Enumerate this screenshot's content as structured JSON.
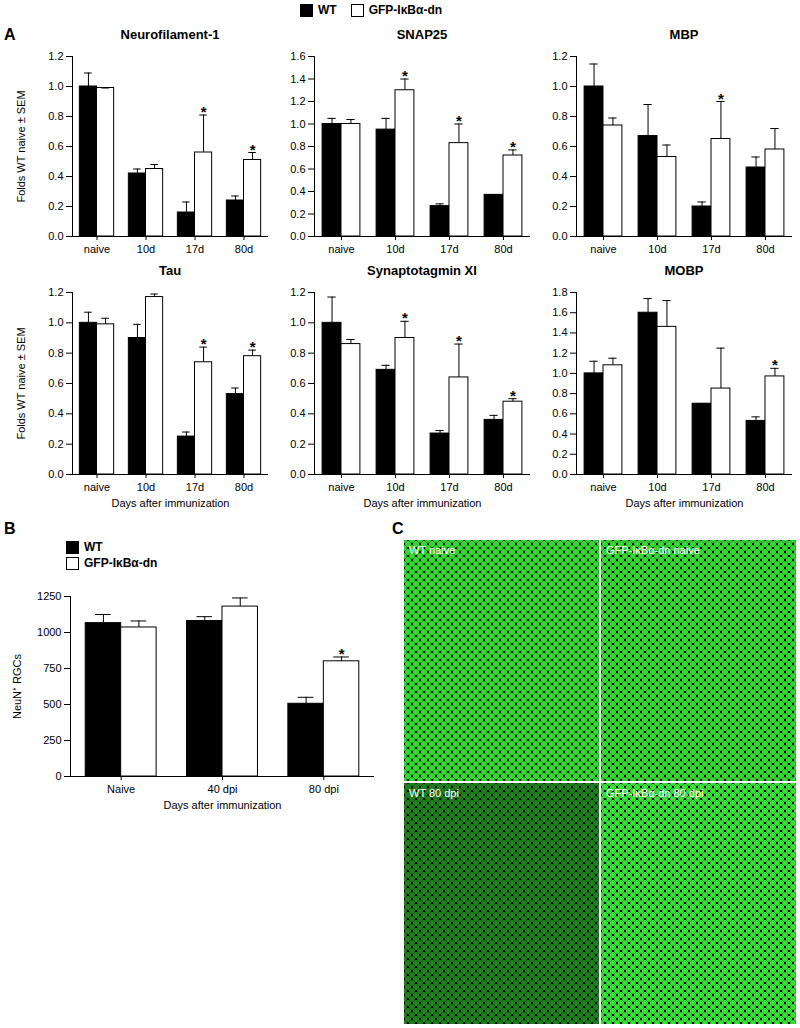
{
  "figure": {
    "panel_labels": [
      "A",
      "B",
      "C"
    ],
    "images": [
      "WT naive",
      "GFP-IκBα-dn naive",
      "WT 80 dpi",
      "GFP-IκBα-dn 80 dpi"
    ]
  },
  "chart_data": [
    {
      "type": "bar",
      "title": "Neurofilament-1",
      "legend": "top",
      "categories": [
        "naive",
        "10d",
        "17d",
        "80d"
      ],
      "ylabel": "Folds WT naive ± SEM",
      "ylim": [
        0,
        1.2
      ],
      "yticks": [
        {
          "value": 0,
          "label": "0.0"
        },
        0.2,
        0.4,
        0.6,
        0.8,
        {
          "value": 1,
          "label": "1.0"
        },
        1.2
      ],
      "series": [
        {
          "name": "WT",
          "color": "#000000",
          "values": [
            1.0,
            0.42,
            0.16,
            0.24
          ],
          "errors": [
            0.09,
            0.03,
            0.07,
            0.03
          ]
        },
        {
          "name": "GFP-IκBα-dn",
          "color": "#ffffff",
          "values": [
            0.99,
            0.45,
            0.56,
            0.51
          ],
          "errors": [
            0.0,
            0.03,
            0.25,
            0.05
          ],
          "annotations": [
            null,
            null,
            "*",
            "*"
          ]
        }
      ]
    },
    {
      "type": "bar",
      "title": "SNAP25",
      "categories": [
        "naive",
        "10d",
        "17d",
        "80d"
      ],
      "ylim": [
        0,
        1.6
      ],
      "yticks": [
        {
          "value": 0,
          "label": "0.0"
        },
        0.2,
        0.4,
        0.6,
        0.8,
        {
          "value": 1,
          "label": "1.0"
        },
        1.2,
        1.4,
        1.6
      ],
      "series": [
        {
          "name": "WT",
          "color": "#000000",
          "values": [
            1.0,
            0.95,
            0.27,
            0.37
          ],
          "errors": [
            0.05,
            0.1,
            0.02,
            0.0
          ]
        },
        {
          "name": "GFP-IκBα-dn",
          "color": "#ffffff",
          "values": [
            1.0,
            1.3,
            0.83,
            0.72
          ],
          "errors": [
            0.04,
            0.1,
            0.17,
            0.05
          ],
          "annotations": [
            null,
            "*",
            "*",
            "*"
          ]
        }
      ]
    },
    {
      "type": "bar",
      "title": "MBP",
      "categories": [
        "naive",
        "10d",
        "17d",
        "80d"
      ],
      "ylim": [
        0,
        1.2
      ],
      "yticks": [
        {
          "value": 0,
          "label": "0.0"
        },
        0.2,
        0.4,
        0.6,
        0.8,
        {
          "value": 1,
          "label": "1.0"
        },
        1.2
      ],
      "series": [
        {
          "name": "WT",
          "color": "#000000",
          "values": [
            1.0,
            0.67,
            0.2,
            0.46
          ],
          "errors": [
            0.15,
            0.21,
            0.03,
            0.07
          ]
        },
        {
          "name": "GFP-IκBα-dn",
          "color": "#ffffff",
          "values": [
            0.74,
            0.53,
            0.65,
            0.58
          ],
          "errors": [
            0.05,
            0.08,
            0.25,
            0.14
          ],
          "annotations": [
            null,
            null,
            "*",
            null
          ]
        }
      ]
    },
    {
      "type": "bar",
      "title": "Tau",
      "categories": [
        "naive",
        "10d",
        "17d",
        "80d"
      ],
      "xlabel": "Days after immunization",
      "ylabel": "Folds WT naive ± SEM",
      "ylim": [
        0,
        1.2
      ],
      "yticks": [
        {
          "value": 0,
          "label": "0.0"
        },
        0.2,
        0.4,
        0.6,
        0.8,
        {
          "value": 1,
          "label": "1.0"
        },
        1.2
      ],
      "series": [
        {
          "name": "WT",
          "color": "#000000",
          "values": [
            1.0,
            0.9,
            0.25,
            0.53
          ],
          "errors": [
            0.07,
            0.09,
            0.03,
            0.04
          ]
        },
        {
          "name": "GFP-IκBα-dn",
          "color": "#ffffff",
          "values": [
            0.99,
            1.17,
            0.74,
            0.78
          ],
          "errors": [
            0.04,
            0.02,
            0.1,
            0.04
          ],
          "annotations": [
            null,
            null,
            "*",
            "*"
          ]
        }
      ]
    },
    {
      "type": "bar",
      "title": "Synaptotagmin XI",
      "categories": [
        "naive",
        "10d",
        "17d",
        "80d"
      ],
      "xlabel": "Days after immunization",
      "ylim": [
        0,
        1.2
      ],
      "yticks": [
        {
          "value": 0,
          "label": "0.0"
        },
        0.2,
        0.4,
        0.6,
        0.8,
        {
          "value": 1,
          "label": "1.0"
        },
        1.2
      ],
      "series": [
        {
          "name": "WT",
          "color": "#000000",
          "values": [
            1.0,
            0.69,
            0.27,
            0.36
          ],
          "errors": [
            0.17,
            0.03,
            0.02,
            0.03
          ]
        },
        {
          "name": "GFP-IκBα-dn",
          "color": "#ffffff",
          "values": [
            0.86,
            0.9,
            0.64,
            0.48
          ],
          "errors": [
            0.03,
            0.11,
            0.22,
            0.02
          ],
          "annotations": [
            null,
            "*",
            "*",
            "*"
          ]
        }
      ]
    },
    {
      "type": "bar",
      "title": "MOBP",
      "categories": [
        "naive",
        "10d",
        "17d",
        "80d"
      ],
      "xlabel": "Days after immunization",
      "ylim": [
        0,
        1.8
      ],
      "yticks": [
        {
          "value": 0,
          "label": "0.0"
        },
        0.2,
        0.4,
        0.6,
        0.8,
        {
          "value": 1,
          "label": "1.0"
        },
        1.2,
        1.4,
        1.6,
        1.8
      ],
      "series": [
        {
          "name": "WT",
          "color": "#000000",
          "values": [
            1.0,
            1.6,
            0.7,
            0.53
          ],
          "errors": [
            0.12,
            0.14,
            0.0,
            0.04
          ]
        },
        {
          "name": "GFP-IκBα-dn",
          "color": "#ffffff",
          "values": [
            1.08,
            1.46,
            0.85,
            0.97
          ],
          "errors": [
            0.07,
            0.26,
            0.4,
            0.08
          ],
          "annotations": [
            null,
            null,
            null,
            "*"
          ]
        }
      ]
    },
    {
      "type": "bar",
      "legend": "top",
      "categories": [
        "Naive",
        "40 dpi",
        "80 dpi"
      ],
      "xlabel": "Days after immunization",
      "ylabel": "NeuN⁺ RGCs",
      "ylim": [
        0,
        1250
      ],
      "yticks": [
        0,
        250,
        500,
        750,
        1000,
        1250
      ],
      "series": [
        {
          "name": "WT",
          "color": "#000000",
          "values": [
            1065,
            1080,
            505
          ],
          "errors": [
            60,
            30,
            45
          ]
        },
        {
          "name": "GFP-IκBα-dn",
          "color": "#ffffff",
          "values": [
            1035,
            1180,
            800
          ],
          "errors": [
            45,
            60,
            30
          ],
          "annotations": [
            null,
            null,
            "*"
          ]
        }
      ]
    }
  ]
}
